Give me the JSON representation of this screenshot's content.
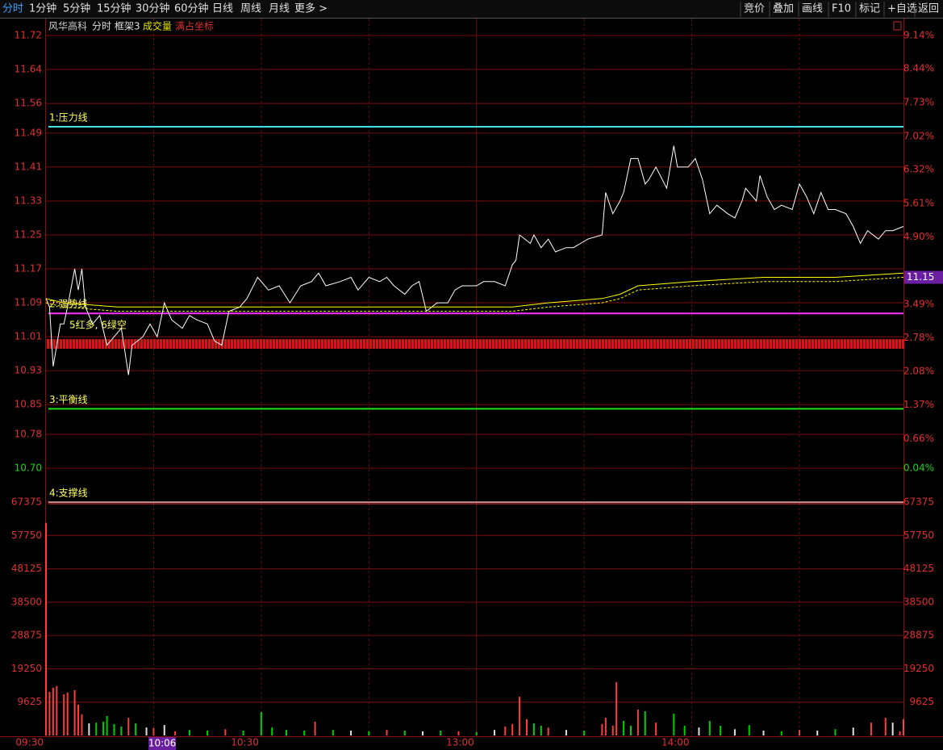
{
  "toolbar": {
    "left": [
      "分时",
      "1分钟",
      "5分钟",
      "15分钟",
      "30分钟",
      "60分钟",
      "日线",
      "周线",
      "月线",
      "更多 >"
    ],
    "right": [
      "竞价",
      "叠加",
      "画线",
      "F10",
      "标记",
      "+自选",
      "返回"
    ]
  },
  "chart_data": [
    {
      "type": "line",
      "title": "风华高科",
      "header": [
        "分时",
        "框架3",
        "成交量",
        "满占坐标"
      ],
      "xlim": [
        0,
        239
      ],
      "ylim": [
        10.7,
        11.72
      ],
      "yticks": [
        11.72,
        11.64,
        11.56,
        11.49,
        11.41,
        11.33,
        11.25,
        11.17,
        11.09,
        11.01,
        10.93,
        10.85,
        10.78,
        {
          "value": 10.7,
          "label": "10.70"
        }
      ],
      "y2lim": [
        0.04,
        9.14
      ],
      "y2ticks": [
        {
          "value": 9.14,
          "label": "9.14%"
        },
        {
          "value": 8.44,
          "label": "8.44%"
        },
        {
          "value": 7.73,
          "label": "7.73%"
        },
        {
          "value": 7.02,
          "label": "7.02%"
        },
        {
          "value": 6.32,
          "label": "6.32%"
        },
        {
          "value": 5.61,
          "label": "5.61%"
        },
        {
          "value": 4.9,
          "label": "4.90%"
        },
        {
          "value": 3.49,
          "label": "3.49%"
        },
        {
          "value": 2.78,
          "label": "2.78%"
        },
        {
          "value": 2.08,
          "label": "2.08%"
        },
        {
          "value": 1.37,
          "label": "1.37%"
        },
        {
          "value": 0.66,
          "label": "0.66%"
        },
        {
          "value": 0.04,
          "label": "0.04%"
        }
      ],
      "grid": true,
      "series": [
        {
          "color": "#ffffff",
          "x": [
            0,
            1,
            2,
            4,
            5,
            6,
            8,
            9,
            10,
            11,
            13,
            15,
            17,
            19,
            21,
            23,
            24,
            27,
            29,
            31,
            33,
            35,
            38,
            40,
            42,
            45,
            47,
            49,
            51,
            54,
            56,
            59,
            62,
            65,
            68,
            71,
            74,
            76,
            78,
            82,
            85,
            87,
            90,
            93,
            95,
            97,
            100,
            102,
            104,
            106,
            109,
            112,
            114,
            116,
            120,
            122,
            125,
            128,
            130,
            131,
            132,
            135,
            136,
            138,
            140,
            142,
            145,
            147,
            149,
            151,
            155,
            156,
            158,
            160,
            161,
            163,
            165,
            167,
            168,
            170,
            173,
            175,
            176,
            179,
            181,
            183,
            185,
            187,
            190,
            192,
            194,
            195,
            198,
            199,
            201,
            203,
            205,
            208,
            210,
            212,
            214,
            216,
            218,
            220,
            223,
            225,
            227,
            229,
            232,
            234,
            236,
            239
          ],
          "values": [
            11.1,
            11.08,
            10.94,
            11.04,
            11.04,
            11.08,
            11.17,
            11.12,
            11.17,
            11.08,
            11.04,
            11.06,
            10.99,
            11.01,
            11.03,
            10.92,
            10.99,
            11.01,
            11.04,
            11.01,
            11.09,
            11.05,
            11.03,
            11.06,
            11.05,
            11.04,
            11.0,
            10.99,
            11.07,
            11.08,
            11.1,
            11.15,
            11.12,
            11.13,
            11.09,
            11.13,
            11.14,
            11.16,
            11.13,
            11.14,
            11.15,
            11.12,
            11.15,
            11.14,
            11.15,
            11.13,
            11.11,
            11.13,
            11.14,
            11.07,
            11.09,
            11.09,
            11.12,
            11.13,
            11.13,
            11.14,
            11.14,
            11.13,
            11.18,
            11.19,
            11.25,
            11.23,
            11.25,
            11.22,
            11.24,
            11.21,
            11.22,
            11.22,
            11.23,
            11.24,
            11.25,
            11.35,
            11.3,
            11.33,
            11.35,
            11.43,
            11.43,
            11.37,
            11.38,
            11.41,
            11.36,
            11.46,
            11.41,
            11.41,
            11.43,
            11.38,
            11.3,
            11.32,
            11.3,
            11.29,
            11.33,
            11.36,
            11.33,
            11.39,
            11.34,
            11.31,
            11.32,
            11.31,
            11.37,
            11.34,
            11.3,
            11.35,
            11.31,
            11.31,
            11.3,
            11.27,
            11.23,
            11.26,
            11.24,
            11.26,
            11.26,
            11.27
          ]
        },
        {
          "color": "#ffff00",
          "x": [
            0,
            5,
            20,
            40,
            60,
            100,
            130,
            140,
            155,
            160,
            165,
            180,
            200,
            220,
            239
          ],
          "values": [
            11.1,
            11.09,
            11.08,
            11.08,
            11.08,
            11.08,
            11.08,
            11.09,
            11.1,
            11.11,
            11.13,
            11.14,
            11.15,
            11.15,
            11.16
          ]
        },
        {
          "color": "#ffff00",
          "dashed": true,
          "x": [
            0,
            5,
            20,
            40,
            60,
            100,
            130,
            140,
            155,
            160,
            165,
            180,
            200,
            220,
            239
          ],
          "values": [
            11.09,
            11.08,
            11.07,
            11.07,
            11.07,
            11.07,
            11.07,
            11.08,
            11.09,
            11.1,
            11.12,
            11.13,
            11.14,
            11.14,
            11.15
          ]
        }
      ],
      "reference_lines": [
        {
          "label": "1:压力线",
          "value": 11.505,
          "color": "#44e0e8"
        },
        {
          "label": "2:强势线",
          "value": 11.065,
          "color": "#ff30ff"
        },
        {
          "label": "3:平衡线",
          "value": 10.84,
          "color": "#20e020"
        },
        {
          "label": "4:支撑线",
          "value": 10.62,
          "color": "#ffffff"
        }
      ],
      "annotation": "5红多, 6绿空",
      "last_price": 11.15
    },
    {
      "type": "bar",
      "xlim": [
        0,
        239
      ],
      "ylim": [
        0,
        67375
      ],
      "yticks": [
        9625,
        19250,
        28875,
        38500,
        48125,
        57750,
        67375
      ],
      "grid": true,
      "xticks": [
        {
          "value": 0,
          "label": "09:30"
        },
        {
          "value": 60,
          "label": "10:30"
        },
        {
          "value": 120,
          "label": "13:00"
        },
        {
          "value": 180,
          "label": "14:00"
        }
      ],
      "cursor": {
        "value": 36,
        "label": "10:06"
      },
      "x": [
        0,
        1,
        2,
        3,
        5,
        6,
        8,
        9,
        10,
        12,
        14,
        16,
        17,
        19,
        21,
        23,
        25,
        28,
        30,
        33,
        36,
        40,
        45,
        50,
        55,
        60,
        63,
        67,
        72,
        75,
        80,
        85,
        90,
        95,
        100,
        105,
        110,
        115,
        120,
        125,
        128,
        130,
        132,
        134,
        136,
        138,
        140,
        145,
        150,
        155,
        156,
        158,
        159,
        161,
        163,
        165,
        167,
        170,
        175,
        178,
        182,
        185,
        188,
        192,
        196,
        200,
        205,
        210,
        215,
        220,
        225,
        230,
        234,
        236,
        238,
        239
      ],
      "values": [
        61400,
        12600,
        13800,
        14300,
        11900,
        12400,
        13100,
        8900,
        6100,
        3500,
        3700,
        4000,
        5600,
        3300,
        2600,
        5100,
        3500,
        2300,
        2100,
        3000,
        1200,
        1600,
        1400,
        1800,
        1400,
        6800,
        2300,
        1600,
        1400,
        4000,
        1600,
        1400,
        1200,
        1600,
        1400,
        1200,
        1400,
        1200,
        1000,
        1600,
        2600,
        3300,
        11200,
        4700,
        3500,
        2800,
        2300,
        1600,
        1400,
        3300,
        5100,
        2800,
        15400,
        4200,
        2800,
        7500,
        7000,
        3700,
        6300,
        2800,
        2300,
        4200,
        2800,
        1800,
        3000,
        1400,
        1200,
        1600,
        1400,
        1800,
        2300,
        3700,
        5100,
        3700,
        1200,
        4700
      ],
      "colors": [
        "#ff3c3c",
        "#ff3c3c",
        "#ff3c3c",
        "#ff3c3c",
        "#ff3c3c",
        "#ff3c3c",
        "#ff3c3c",
        "#ff3c3c",
        "#ff3c3c",
        "#e0e0e0",
        "#00d000",
        "#00d000",
        "#00d000",
        "#00d000",
        "#00d000",
        "#ff3c3c",
        "#00d000",
        "#e0e0e0",
        "#ff3c3c",
        "#e0e0e0",
        "#ff3c3c",
        "#00d000",
        "#00d000",
        "#ff3c3c",
        "#00d000",
        "#00d000",
        "#00d000",
        "#00d000",
        "#00d000",
        "#ff3c3c",
        "#00d000",
        "#e0e0e0",
        "#00d000",
        "#ff3c3c",
        "#00d000",
        "#e0e0e0",
        "#00d000",
        "#ff3c3c",
        "#00d000",
        "#e0e0e0",
        "#ff3c3c",
        "#ff3c3c",
        "#ff3c3c",
        "#ff3c3c",
        "#00d000",
        "#00d000",
        "#ff3c3c",
        "#e0e0e0",
        "#00d000",
        "#ff3c3c",
        "#ff3c3c",
        "#ff3c3c",
        "#ff3c3c",
        "#00d000",
        "#00d000",
        "#ff3c3c",
        "#00d000",
        "#ff3c3c",
        "#00d000",
        "#00d000",
        "#e0e0e0",
        "#00d000",
        "#00d000",
        "#e0e0e0",
        "#00d000",
        "#e0e0e0",
        "#00d000",
        "#ff3c3c",
        "#e0e0e0",
        "#00d000",
        "#e0e0e0",
        "#ff3c3c",
        "#ff3c3c",
        "#e0e0e0",
        "#ff3c3c",
        "#ff3c3c"
      ]
    }
  ]
}
